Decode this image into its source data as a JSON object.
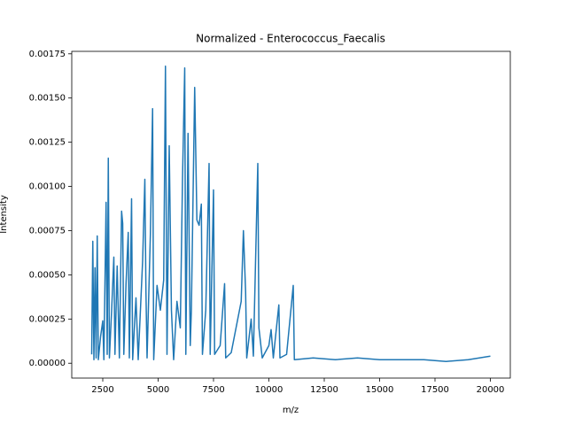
{
  "chart_data": {
    "type": "line",
    "title": "Normalized - Enterococcus_Faecalis",
    "x_label": "m/z",
    "y_label": "Intensity",
    "color": "#1f77b4",
    "x": [
      2000,
      2050,
      2100,
      2150,
      2200,
      2250,
      2300,
      2400,
      2500,
      2550,
      2650,
      2700,
      2750,
      2800,
      2900,
      3000,
      3050,
      3150,
      3250,
      3350,
      3400,
      3450,
      3550,
      3650,
      3700,
      3800,
      3850,
      4000,
      4100,
      4300,
      4400,
      4450,
      4500,
      4650,
      4750,
      4800,
      4950,
      5100,
      5250,
      5330,
      5400,
      5500,
      5600,
      5700,
      5850,
      6000,
      6100,
      6200,
      6250,
      6350,
      6450,
      6500,
      6650,
      6750,
      6850,
      6950,
      7000,
      7150,
      7300,
      7350,
      7500,
      7550,
      7800,
      8000,
      8050,
      8300,
      8750,
      8850,
      8950,
      9000,
      9200,
      9300,
      9500,
      9550,
      9700,
      10000,
      10100,
      10200,
      10450,
      10500,
      10800,
      11100,
      11150,
      12000,
      13000,
      14000,
      15000,
      16000,
      17000,
      18000,
      19000,
      20000
    ],
    "values": [
      5e-05,
      0.00069,
      2e-05,
      0.00054,
      3e-05,
      0.00072,
      2e-05,
      0.00015,
      0.00024,
      2e-05,
      0.00091,
      5e-05,
      0.00116,
      3e-05,
      0.0003,
      0.0006,
      5e-05,
      0.00055,
      3e-05,
      0.00086,
      0.00079,
      5e-05,
      0.00045,
      0.00074,
      3e-05,
      0.00093,
      2e-05,
      0.00037,
      2e-05,
      0.00058,
      0.00104,
      0.0004,
      3e-05,
      0.00073,
      0.00144,
      2e-05,
      0.00044,
      0.0003,
      0.00047,
      0.00168,
      5e-05,
      0.00123,
      0.0003,
      2e-05,
      0.00035,
      0.0002,
      0.00104,
      0.00167,
      5e-05,
      0.0013,
      0.0001,
      0.0003,
      0.00156,
      0.00081,
      0.00078,
      0.0009,
      5e-05,
      0.0003,
      0.00113,
      5e-05,
      0.00098,
      5e-05,
      0.0001,
      0.00045,
      3e-05,
      6e-05,
      0.00035,
      0.00075,
      0.0004,
      3e-05,
      0.00025,
      4e-05,
      0.00113,
      0.0002,
      3e-05,
      0.0001,
      0.00019,
      3e-05,
      0.00033,
      3e-05,
      5e-05,
      0.00044,
      2e-05,
      3e-05,
      2e-05,
      3e-05,
      2e-05,
      2e-05,
      2e-05,
      1e-05,
      2e-05,
      4e-05
    ],
    "xlim": [
      1100,
      20900
    ],
    "ylim": [
      -8.4e-05,
      0.001764
    ],
    "xticks": [
      2500,
      5000,
      7500,
      10000,
      12500,
      15000,
      17500,
      20000
    ],
    "yticks": [
      {
        "value": 0,
        "label": "0.00000"
      },
      {
        "value": 0.00025,
        "label": "0.00025"
      },
      {
        "value": 0.0005,
        "label": "0.00050"
      },
      {
        "value": 0.00075,
        "label": "0.00075"
      },
      {
        "value": 0.001,
        "label": "0.00100"
      },
      {
        "value": 0.00125,
        "label": "0.00125"
      },
      {
        "value": 0.0015,
        "label": "0.00150"
      },
      {
        "value": 0.00175,
        "label": "0.00175"
      }
    ]
  }
}
